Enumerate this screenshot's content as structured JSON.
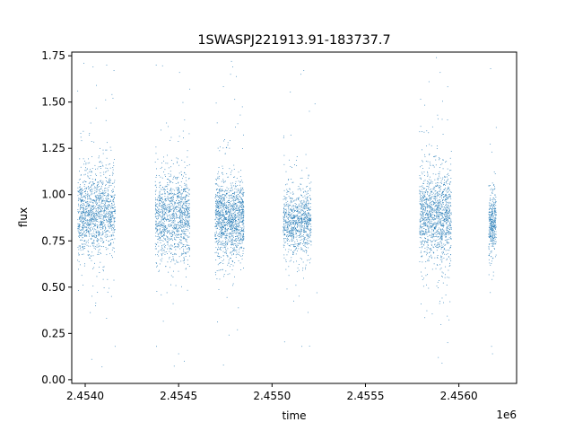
{
  "chart_data": {
    "type": "scatter",
    "title": "1SWASPJ221913.91-183737.7",
    "xlabel": "time",
    "ylabel": "flux",
    "x_offset_label": "1e6",
    "xlim": [
      2453828,
      2456209
    ],
    "ylim": [
      -0.02,
      1.77
    ],
    "x_ticks": [
      {
        "value": 2453900,
        "label": "2.4540"
      },
      {
        "value": 2454400,
        "label": "2.4545"
      },
      {
        "value": 2454900,
        "label": "2.4550"
      },
      {
        "value": 2455400,
        "label": "2.4555"
      },
      {
        "value": 2455900,
        "label": "2.4560"
      }
    ],
    "y_ticks": [
      {
        "value": 0.0,
        "label": "0.00"
      },
      {
        "value": 0.25,
        "label": "0.25"
      },
      {
        "value": 0.5,
        "label": "0.50"
      },
      {
        "value": 0.75,
        "label": "0.75"
      },
      {
        "value": 1.0,
        "label": "1.00"
      },
      {
        "value": 1.25,
        "label": "1.25"
      },
      {
        "value": 1.5,
        "label": "1.50"
      },
      {
        "value": 1.75,
        "label": "1.75"
      }
    ],
    "grid": false,
    "marker_color": "#1f77b4",
    "series": [
      {
        "seasons": [
          {
            "start": 2453860,
            "end": 2454060,
            "center": 0.9,
            "spread": 0.2,
            "count": 1300,
            "points": [
              [
                2453990,
                0.07
              ],
              [
                2453935,
                0.11
              ],
              [
                2454060,
                0.18
              ],
              [
                2453893,
                1.71
              ],
              [
                2454015,
                1.7
              ],
              [
                2453942,
                1.69
              ],
              [
                2454054,
                1.67
              ],
              [
                2453860,
                1.56
              ],
              [
                2453960,
                1.59
              ]
            ]
          },
          {
            "start": 2454275,
            "end": 2454460,
            "center": 0.88,
            "spread": 0.2,
            "count": 1200,
            "points": [
              [
                2454280,
                1.7
              ],
              [
                2454405,
                1.66
              ],
              [
                2454460,
                1.57
              ],
              [
                2454430,
                0.1
              ],
              [
                2454400,
                0.14
              ],
              [
                2454282,
                0.18
              ]
            ]
          },
          {
            "start": 2454595,
            "end": 2454750,
            "center": 0.87,
            "spread": 0.18,
            "count": 1300,
            "points": [
              [
                2454683,
                1.72
              ],
              [
                2454690,
                1.69
              ],
              [
                2454678,
                1.65
              ],
              [
                2454640,
                0.08
              ],
              [
                2454730,
                1.43
              ]
            ]
          },
          {
            "start": 2454960,
            "end": 2455110,
            "center": 0.86,
            "spread": 0.15,
            "count": 900,
            "points": [
              [
                2455070,
                1.67
              ],
              [
                2455055,
                1.65
              ],
              [
                2455130,
                1.49
              ],
              [
                2455100,
                1.45
              ],
              [
                2455140,
                0.47
              ],
              [
                2455060,
                0.18
              ]
            ]
          },
          {
            "start": 2455690,
            "end": 2455860,
            "center": 0.89,
            "spread": 0.21,
            "count": 1300,
            "points": [
              [
                2455780,
                1.74
              ],
              [
                2455800,
                1.66
              ],
              [
                2455740,
                1.61
              ],
              [
                2455810,
                0.09
              ],
              [
                2455790,
                0.12
              ],
              [
                2455840,
                0.2
              ]
            ]
          },
          {
            "start": 2456060,
            "end": 2456100,
            "center": 0.85,
            "spread": 0.14,
            "count": 350,
            "points": [
              [
                2456070,
                1.68
              ],
              [
                2456080,
                0.14
              ],
              [
                2456075,
                0.18
              ]
            ]
          }
        ]
      }
    ]
  }
}
